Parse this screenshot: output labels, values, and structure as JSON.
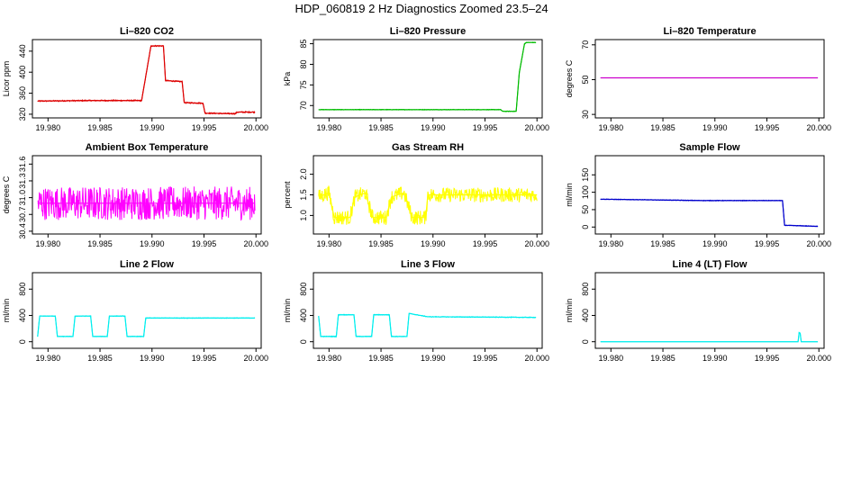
{
  "title": "HDP_060819  2 Hz Diagnostics Zoomed 23.5–24",
  "chart_data": [
    {
      "type": "line",
      "title": "Li–820 CO2",
      "ylabel": "Licor ppm",
      "color": "#dd0000",
      "xlim": [
        19.9785,
        20.0005
      ],
      "ylim": [
        313,
        462
      ],
      "x_ticks": [
        "19.980",
        "19.985",
        "19.990",
        "19.995",
        "20.000"
      ],
      "y_ticks": [
        "320",
        "360",
        "400",
        "440"
      ],
      "x": [
        19.979,
        19.984,
        19.989,
        19.9899,
        19.99,
        19.9911,
        19.9913,
        19.9929,
        19.9931,
        19.9949,
        19.9951,
        19.998,
        19.9982,
        19.9999
      ],
      "y": [
        345,
        346,
        346,
        450,
        450,
        450,
        384,
        382,
        342,
        341,
        322,
        321,
        324,
        324
      ],
      "noise": 1.2
    },
    {
      "type": "line",
      "title": "Li–820 Pressure",
      "ylabel": "kPa",
      "color": "#00bb00",
      "xlim": [
        19.9785,
        20.0005
      ],
      "ylim": [
        67,
        86
      ],
      "x_ticks": [
        "19.980",
        "19.985",
        "19.990",
        "19.995",
        "20.000"
      ],
      "y_ticks": [
        "70",
        "75",
        "80",
        "85"
      ],
      "x": [
        19.979,
        19.9965,
        19.9967,
        19.998,
        19.9983,
        19.9988,
        19.999,
        19.9999
      ],
      "y": [
        69,
        69,
        68.6,
        68.6,
        78,
        85,
        85.3,
        85.3
      ],
      "noise": 0.08
    },
    {
      "type": "line",
      "title": "Li–820 Temperature",
      "ylabel": "degrees C",
      "color": "#cc00cc",
      "xlim": [
        19.9785,
        20.0005
      ],
      "ylim": [
        28,
        73
      ],
      "x_ticks": [
        "19.980",
        "19.985",
        "19.990",
        "19.995",
        "20.000"
      ],
      "y_ticks": [
        "30",
        "50",
        "70"
      ],
      "x": [
        19.979,
        19.9999
      ],
      "y": [
        51,
        51
      ],
      "noise": 0
    },
    {
      "type": "line",
      "title": "Ambient Box Temperature",
      "ylabel": "degrees C",
      "color": "#ff00ff",
      "xlim": [
        19.9785,
        20.0005
      ],
      "ylim": [
        30.35,
        31.75
      ],
      "x_ticks": [
        "19.980",
        "19.985",
        "19.990",
        "19.995",
        "20.000"
      ],
      "y_ticks": [
        "30.4",
        "30.7",
        "31.0",
        "31.3",
        "31.6"
      ],
      "x": [
        19.979,
        19.9999
      ],
      "y": [
        30.9,
        30.9
      ],
      "noise": 0.3
    },
    {
      "type": "line",
      "title": "Gas Stream RH",
      "ylabel": "percent",
      "color": "#ffff00",
      "xlim": [
        19.9785,
        20.0005
      ],
      "ylim": [
        0.55,
        2.45
      ],
      "x_ticks": [
        "19.980",
        "19.985",
        "19.990",
        "19.995",
        "20.000"
      ],
      "y_ticks": [
        "1.0",
        "1.5",
        "2.0"
      ],
      "x": [
        19.979,
        19.98,
        19.9805,
        19.982,
        19.9825,
        19.9835,
        19.9842,
        19.9855,
        19.986,
        19.9872,
        19.988,
        19.9893,
        19.9895,
        20.0
      ],
      "y": [
        1.45,
        1.55,
        0.95,
        0.95,
        1.45,
        1.55,
        0.95,
        0.95,
        1.45,
        1.55,
        0.95,
        0.95,
        1.5,
        1.5
      ],
      "noise": 0.18
    },
    {
      "type": "line",
      "title": "Sample Flow",
      "ylabel": "ml/min",
      "color": "#0000cc",
      "xlim": [
        19.9785,
        20.0005
      ],
      "ylim": [
        -20,
        205
      ],
      "x_ticks": [
        "19.980",
        "19.985",
        "19.990",
        "19.995",
        "20.000"
      ],
      "y_ticks": [
        "0",
        "50",
        "100",
        "150"
      ],
      "x": [
        19.979,
        19.989,
        19.9965,
        19.9967,
        19.9999
      ],
      "y": [
        80,
        76,
        76,
        5,
        2
      ],
      "noise": 1
    },
    {
      "type": "line",
      "title": "Line 2 Flow",
      "ylabel": "ml/min",
      "color": "#00eeee",
      "xlim": [
        19.9785,
        20.0005
      ],
      "ylim": [
        -100,
        1050
      ],
      "x_ticks": [
        "19.980",
        "19.985",
        "19.990",
        "19.995",
        "20.000"
      ],
      "y_ticks": [
        "0",
        "400",
        "800"
      ],
      "x": [
        19.979,
        19.9792,
        19.9807,
        19.9809,
        19.9824,
        19.9826,
        19.9841,
        19.9843,
        19.9857,
        19.9859,
        19.9874,
        19.9876,
        19.9892,
        19.9894,
        19.9999
      ],
      "y": [
        80,
        390,
        390,
        80,
        80,
        390,
        390,
        80,
        80,
        390,
        390,
        80,
        80,
        360,
        360
      ],
      "noise": 5
    },
    {
      "type": "line",
      "title": "Line 3 Flow",
      "ylabel": "ml/min",
      "color": "#00eeee",
      "xlim": [
        19.9785,
        20.0005
      ],
      "ylim": [
        -100,
        1050
      ],
      "x_ticks": [
        "19.980",
        "19.985",
        "19.990",
        "19.995",
        "20.000"
      ],
      "y_ticks": [
        "0",
        "400",
        "800"
      ],
      "x": [
        19.979,
        19.9792,
        19.9807,
        19.9809,
        19.9824,
        19.9826,
        19.9841,
        19.9843,
        19.9858,
        19.986,
        19.9875,
        19.9877,
        19.9895,
        19.9999
      ],
      "y": [
        390,
        80,
        80,
        410,
        410,
        80,
        80,
        410,
        410,
        80,
        80,
        430,
        380,
        370
      ],
      "noise": 6
    },
    {
      "type": "line",
      "title": "Line 4 (LT) Flow",
      "ylabel": "ml/min",
      "color": "#00eeee",
      "xlim": [
        19.9785,
        20.0005
      ],
      "ylim": [
        -100,
        1050
      ],
      "x_ticks": [
        "19.980",
        "19.985",
        "19.990",
        "19.995",
        "20.000"
      ],
      "y_ticks": [
        "0",
        "400",
        "800"
      ],
      "x": [
        19.979,
        19.998,
        19.9981,
        19.9982,
        19.9983,
        19.9999
      ],
      "y": [
        0,
        0,
        140,
        130,
        0,
        0
      ],
      "noise": 0
    }
  ]
}
